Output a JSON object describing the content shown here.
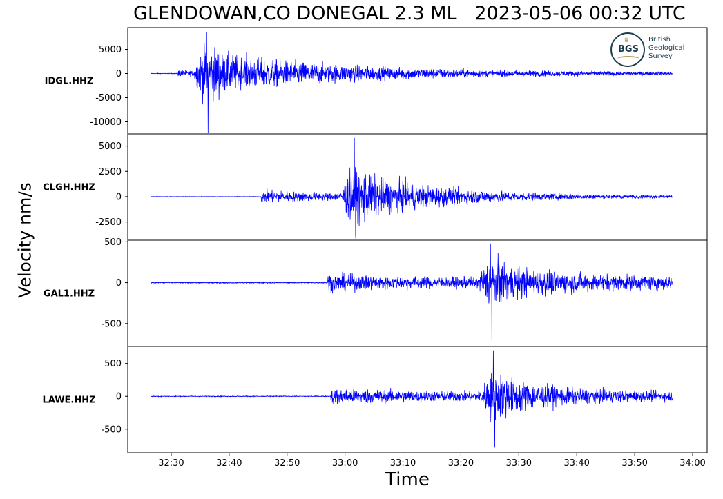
{
  "title": "GLENDOWAN,CO DONEGAL 2.3 ML   2023-05-06 00:32 UTC",
  "logo": {
    "org_lines": [
      "British",
      "Geological",
      "Survey"
    ],
    "mark": "BGS"
  },
  "colors": {
    "trace": "#0000ff",
    "axes": "#000000"
  },
  "chart_data": {
    "type": "line",
    "ylabel": "Velocity nm/s",
    "xlabel": "Time",
    "x_unit": "time of day (mm:ss within hour 00)",
    "x_range": [
      "32:22.5",
      "34:02.5"
    ],
    "x_ticks": [
      "32:30",
      "32:40",
      "32:50",
      "33:00",
      "33:10",
      "33:20",
      "33:30",
      "33:40",
      "33:50",
      "34:00"
    ],
    "trace_time_span": [
      "32:26.5",
      "33:56.5"
    ],
    "panels": [
      {
        "station": "IDGL.HHZ",
        "ylim": [
          -12500,
          9500
        ],
        "yticks": [
          5000,
          0,
          -5000,
          -10000
        ],
        "ytick_labels": [
          "5000",
          "0",
          "-5000",
          "-10000"
        ],
        "p_arrival": "32:31.2",
        "s_arrival": "32:35.5",
        "peak_max": 8500,
        "peak_min": -12300,
        "pre_noise": 80,
        "p_amp": 1200,
        "s_amp": 6500,
        "coda_end": 300
      },
      {
        "station": "CLGH.HHZ",
        "ylim": [
          -4300,
          6200
        ],
        "yticks": [
          5000,
          2500,
          0,
          -2500
        ],
        "ytick_labels": [
          "5000",
          "2500",
          "0",
          "-2500"
        ],
        "p_arrival": "32:45.5",
        "s_arrival": "33:01.0",
        "peak_max": 5800,
        "peak_min": -4200,
        "pre_noise": 30,
        "p_amp": 900,
        "s_amp": 3200,
        "coda_end": 80
      },
      {
        "station": "GAL1.HHZ",
        "ylim": [
          -780,
          520
        ],
        "yticks": [
          500,
          0,
          -500
        ],
        "ytick_labels": [
          "500",
          "0",
          "-500"
        ],
        "p_arrival": "32:57.0",
        "s_arrival": "33:24.5",
        "peak_max": 480,
        "peak_min": -710,
        "pre_noise": 8,
        "p_amp": 150,
        "s_amp": 350,
        "coda_end": 100
      },
      {
        "station": "LAWE.HHZ",
        "ylim": [
          -860,
          760
        ],
        "yticks": [
          500,
          0,
          -500
        ],
        "ytick_labels": [
          "500",
          "0",
          "-500"
        ],
        "p_arrival": "32:57.5",
        "s_arrival": "33:25.0",
        "peak_max": 700,
        "peak_min": -780,
        "pre_noise": 8,
        "p_amp": 170,
        "s_amp": 450,
        "coda_end": 80
      }
    ]
  }
}
